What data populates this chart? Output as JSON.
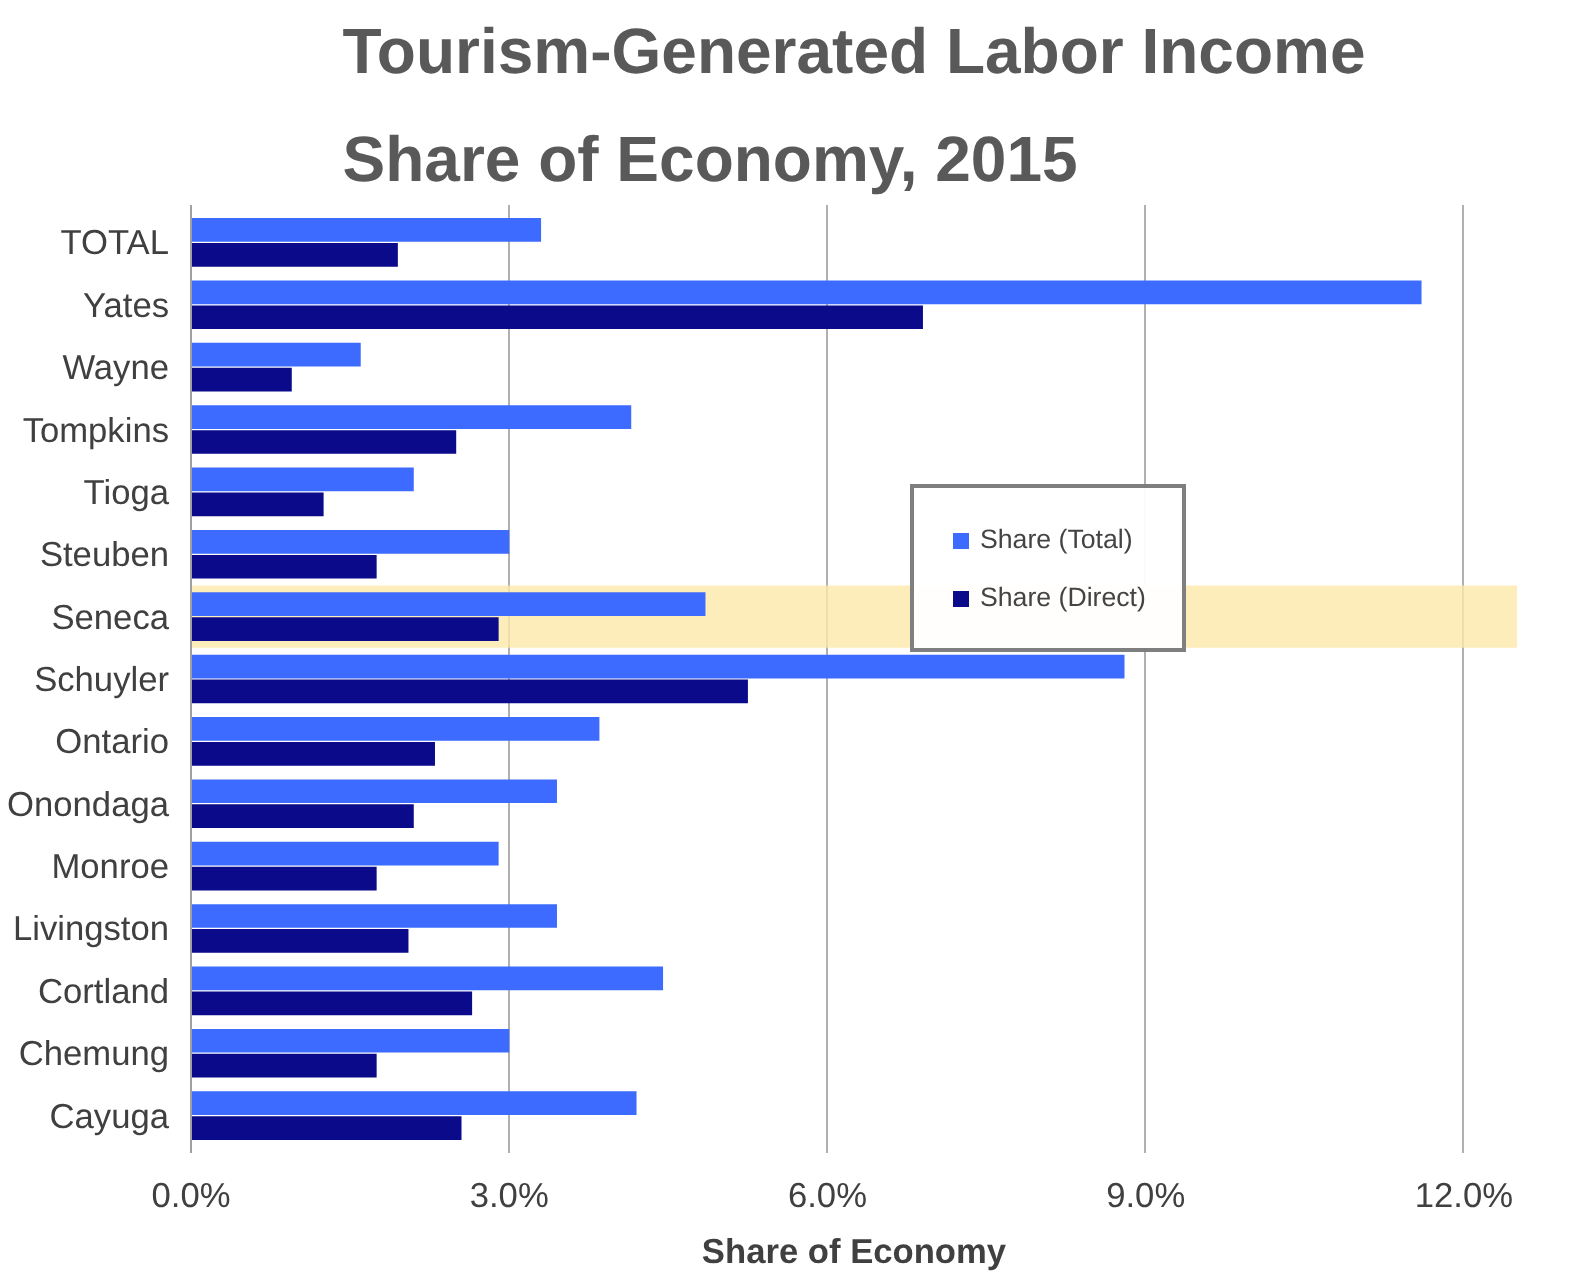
{
  "chart_data": {
    "type": "bar",
    "orientation": "horizontal",
    "title": "Tourism-Generated Labor Income\nShare of Economy, 2015",
    "xlabel": "Share of Economy",
    "categories": [
      "TOTAL",
      "Yates",
      "Wayne",
      "Tompkins",
      "Tioga",
      "Steuben",
      "Seneca",
      "Schuyler",
      "Ontario",
      "Onondaga",
      "Monroe",
      "Livingston",
      "Cortland",
      "Chemung",
      "Cayuga"
    ],
    "series": [
      {
        "name": "Share (Total)",
        "color": "#3d6bff",
        "values": [
          3.3,
          11.6,
          1.6,
          4.15,
          2.1,
          3.0,
          4.85,
          8.8,
          3.85,
          3.45,
          2.9,
          3.45,
          4.45,
          3.0,
          4.2
        ]
      },
      {
        "name": "Share (Direct)",
        "color": "#0a0a8a",
        "values": [
          1.95,
          6.9,
          0.95,
          2.5,
          1.25,
          1.75,
          2.9,
          5.25,
          2.3,
          2.1,
          1.75,
          2.05,
          2.65,
          1.75,
          2.55
        ]
      }
    ],
    "xlim": [
      0,
      12.5
    ],
    "xticks": [
      {
        "value": 0,
        "label": "0.0%"
      },
      {
        "value": 3,
        "label": "3.0%"
      },
      {
        "value": 6,
        "label": "6.0%"
      },
      {
        "value": 9,
        "label": "9.0%"
      },
      {
        "value": 12,
        "label": "12.0%"
      }
    ],
    "bands": [
      {
        "axis": "y",
        "from": "Seneca",
        "to": "Seneca",
        "color": "#fde9a9"
      }
    ],
    "grid": "x",
    "legend": "right"
  }
}
